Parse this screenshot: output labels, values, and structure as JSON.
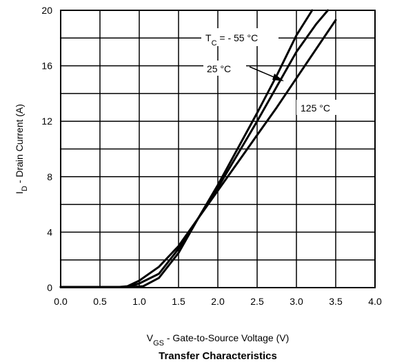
{
  "chart_data": {
    "type": "line",
    "title": "Transfer Characteristics",
    "xlabel": {
      "main": "V",
      "sub": "GS",
      "rest": " - Gate-to-Source Voltage (V)"
    },
    "ylabel": {
      "main": "I",
      "sub": "D",
      "rest": " - Drain Current  (A)"
    },
    "xlim": [
      0,
      4
    ],
    "ylim": [
      0,
      20
    ],
    "xticks": [
      "0.0",
      "0.5",
      "1.0",
      "1.5",
      "2.0",
      "2.5",
      "3.0",
      "3.5",
      "4.0"
    ],
    "yticks": [
      "0",
      "4",
      "8",
      "12",
      "16",
      "20"
    ],
    "grid": true,
    "legend": "annotations",
    "annotations": {
      "tc": {
        "main": "T",
        "sub": "C",
        "rest": " = - 55 °C"
      },
      "t25": "25 °C",
      "t125": "125 °C"
    },
    "series": [
      {
        "x": [
          0.0,
          0.25,
          0.5,
          0.75,
          0.85,
          1.0,
          1.25,
          1.5,
          1.75,
          2.0,
          2.25,
          2.5,
          2.75,
          3.0,
          3.25,
          3.5
        ],
        "y": [
          0.05,
          0.05,
          0.05,
          0.05,
          0.1,
          0.5,
          1.5,
          3.0,
          5.0,
          7.0,
          9.0,
          11.0,
          13.0,
          15.1,
          17.2,
          19.3
        ]
      },
      {
        "x": [
          0.0,
          0.25,
          0.5,
          0.75,
          0.85,
          1.0,
          1.25,
          1.5,
          1.75,
          2.0,
          2.25,
          2.5,
          2.75,
          3.0,
          3.25,
          3.4
        ],
        "y": [
          0.05,
          0.05,
          0.05,
          0.05,
          0.05,
          0.3,
          1.0,
          2.8,
          5.0,
          7.2,
          9.6,
          12.0,
          14.5,
          17.0,
          19.0,
          20.0
        ]
      },
      {
        "x": [
          0.0,
          0.25,
          0.5,
          0.75,
          0.9,
          1.05,
          1.25,
          1.5,
          1.75,
          2.0,
          2.25,
          2.5,
          2.75,
          3.0,
          3.2
        ],
        "y": [
          0.05,
          0.05,
          0.05,
          0.05,
          0.05,
          0.1,
          0.7,
          2.5,
          5.0,
          7.4,
          10.0,
          12.6,
          15.3,
          18.2,
          20.0
        ]
      }
    ]
  }
}
